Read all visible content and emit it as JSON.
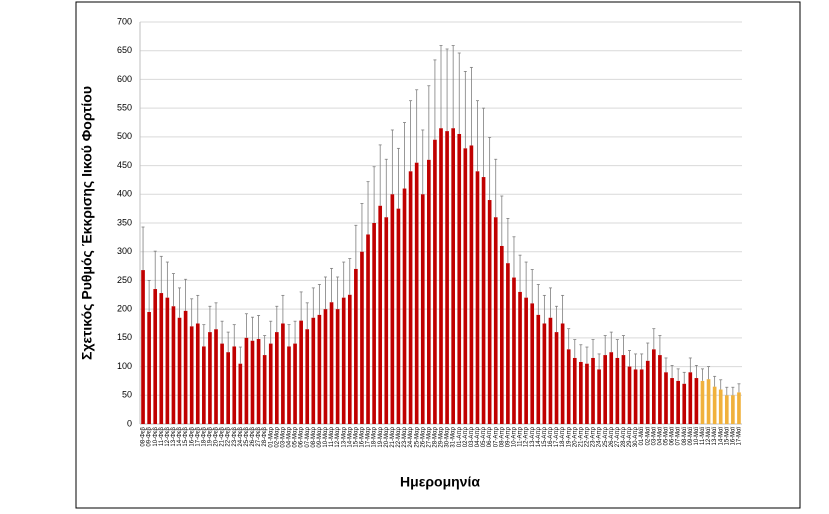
{
  "chart_data": {
    "type": "bar",
    "y_label": "Σχετικός Ρυθμός Έκκρισης Ιικού Φορτίου",
    "x_label": "Ημερομηνία",
    "categories": [
      "08-Φεβ",
      "09-Φεβ",
      "10-Φεβ",
      "11-Φεβ",
      "12-Φεβ",
      "13-Φεβ",
      "14-Φεβ",
      "15-Φεβ",
      "16-Φεβ",
      "17-Φεβ",
      "18-Φεβ",
      "19-Φεβ",
      "20-Φεβ",
      "21-Φεβ",
      "22-Φεβ",
      "23-Φεβ",
      "24-Φεβ",
      "25-Φεβ",
      "26-Φεβ",
      "27-Φεβ",
      "28-Φεβ",
      "01-Μαρ",
      "02-Μαρ",
      "03-Μαρ",
      "04-Μαρ",
      "05-Μαρ",
      "06-Μαρ",
      "07-Μαρ",
      "08-Μαρ",
      "09-Μαρ",
      "10-Μαρ",
      "11-Μαρ",
      "12-Μαρ",
      "13-Μαρ",
      "14-Μαρ",
      "15-Μαρ",
      "16-Μαρ",
      "17-Μαρ",
      "18-Μαρ",
      "19-Μαρ",
      "20-Μαρ",
      "21-Μαρ",
      "22-Μαρ",
      "23-Μαρ",
      "24-Μαρ",
      "25-Μαρ",
      "26-Μαρ",
      "27-Μαρ",
      "28-Μαρ",
      "29-Μαρ",
      "30-Μαρ",
      "31-Μαρ",
      "01-Απρ",
      "02-Απρ",
      "03-Απρ",
      "04-Απρ",
      "05-Απρ",
      "06-Απρ",
      "07-Απρ",
      "08-Απρ",
      "09-Απρ",
      "10-Απρ",
      "11-Απρ",
      "12-Απρ",
      "13-Απρ",
      "14-Απρ",
      "15-Απρ",
      "16-Απρ",
      "17-Απρ",
      "18-Απρ",
      "19-Απρ",
      "20-Απρ",
      "21-Απρ",
      "22-Απρ",
      "23-Απρ",
      "24-Απρ",
      "25-Απρ",
      "26-Απρ",
      "27-Απρ",
      "28-Απρ",
      "29-Απρ",
      "30-Απρ",
      "01-Μαϊ",
      "02-Μαϊ",
      "03-Μαϊ",
      "04-Μαϊ",
      "05-Μαϊ",
      "06-Μαϊ",
      "07-Μαϊ",
      "08-Μαϊ",
      "09-Μαϊ",
      "10-Μαϊ",
      "11-Μαϊ",
      "12-Μαϊ",
      "13-Μαϊ",
      "14-Μαϊ",
      "15-Μαϊ",
      "16-Μαϊ",
      "17-Μαϊ"
    ],
    "values": [
      268,
      195,
      235,
      228,
      220,
      205,
      185,
      197,
      170,
      175,
      135,
      160,
      165,
      140,
      125,
      135,
      105,
      150,
      145,
      148,
      120,
      140,
      160,
      175,
      135,
      140,
      180,
      165,
      185,
      190,
      200,
      212,
      200,
      220,
      225,
      270,
      300,
      330,
      350,
      380,
      360,
      400,
      375,
      410,
      440,
      455,
      400,
      460,
      495,
      515,
      510,
      515,
      505,
      480,
      485,
      440,
      430,
      390,
      360,
      310,
      280,
      255,
      230,
      220,
      210,
      190,
      175,
      185,
      160,
      175,
      130,
      115,
      108,
      105,
      115,
      95,
      120,
      125,
      115,
      120,
      100,
      95,
      95,
      110,
      130,
      120,
      90,
      80,
      75,
      70,
      90,
      80,
      75,
      78,
      65,
      60,
      50,
      50,
      55
    ],
    "errors": [
      75,
      55,
      66,
      64,
      62,
      57,
      52,
      55,
      48,
      49,
      38,
      45,
      46,
      39,
      35,
      38,
      29,
      42,
      41,
      41,
      34,
      39,
      45,
      49,
      38,
      39,
      50,
      46,
      52,
      53,
      56,
      59,
      56,
      62,
      63,
      76,
      84,
      92,
      98,
      106,
      101,
      112,
      105,
      115,
      123,
      127,
      112,
      129,
      139,
      144,
      143,
      144,
      141,
      134,
      136,
      123,
      120,
      109,
      101,
      87,
      78,
      71,
      64,
      62,
      59,
      53,
      49,
      52,
      45,
      49,
      36,
      32,
      30,
      29,
      32,
      27,
      34,
      35,
      32,
      34,
      28,
      27,
      27,
      31,
      36,
      34,
      25,
      22,
      21,
      20,
      25,
      22,
      21,
      22,
      18,
      17,
      14,
      14,
      15
    ],
    "colors": [
      "#c00000",
      "#c00000",
      "#c00000",
      "#c00000",
      "#c00000",
      "#c00000",
      "#c00000",
      "#c00000",
      "#c00000",
      "#c00000",
      "#c00000",
      "#c00000",
      "#c00000",
      "#c00000",
      "#c00000",
      "#c00000",
      "#c00000",
      "#c00000",
      "#c00000",
      "#c00000",
      "#c00000",
      "#c00000",
      "#c00000",
      "#c00000",
      "#c00000",
      "#c00000",
      "#c00000",
      "#c00000",
      "#c00000",
      "#c00000",
      "#c00000",
      "#c00000",
      "#c00000",
      "#c00000",
      "#c00000",
      "#c00000",
      "#c00000",
      "#c00000",
      "#c00000",
      "#c00000",
      "#c00000",
      "#c00000",
      "#c00000",
      "#c00000",
      "#c00000",
      "#c00000",
      "#c00000",
      "#c00000",
      "#c00000",
      "#c00000",
      "#c00000",
      "#c00000",
      "#c00000",
      "#c00000",
      "#c00000",
      "#c00000",
      "#c00000",
      "#c00000",
      "#c00000",
      "#c00000",
      "#c00000",
      "#c00000",
      "#c00000",
      "#c00000",
      "#c00000",
      "#c00000",
      "#c00000",
      "#c00000",
      "#c00000",
      "#c00000",
      "#c00000",
      "#c00000",
      "#c00000",
      "#c00000",
      "#c00000",
      "#c00000",
      "#c00000",
      "#c00000",
      "#c00000",
      "#c00000",
      "#c00000",
      "#c00000",
      "#c00000",
      "#c00000",
      "#c00000",
      "#c00000",
      "#c00000",
      "#c00000",
      "#c00000",
      "#c00000",
      "#c00000",
      "#c00000",
      "#f0b13c",
      "#f0b13c",
      "#f0b13c",
      "#f0b13c",
      "#f0b13c",
      "#f0b13c",
      "#f0b13c"
    ],
    "error_color": "#7f7f7f",
    "ylim": [
      0,
      700
    ],
    "yticks": [
      0,
      50,
      100,
      150,
      200,
      250,
      300,
      350,
      400,
      450,
      500,
      550,
      600,
      650,
      700
    ],
    "grid": true
  }
}
